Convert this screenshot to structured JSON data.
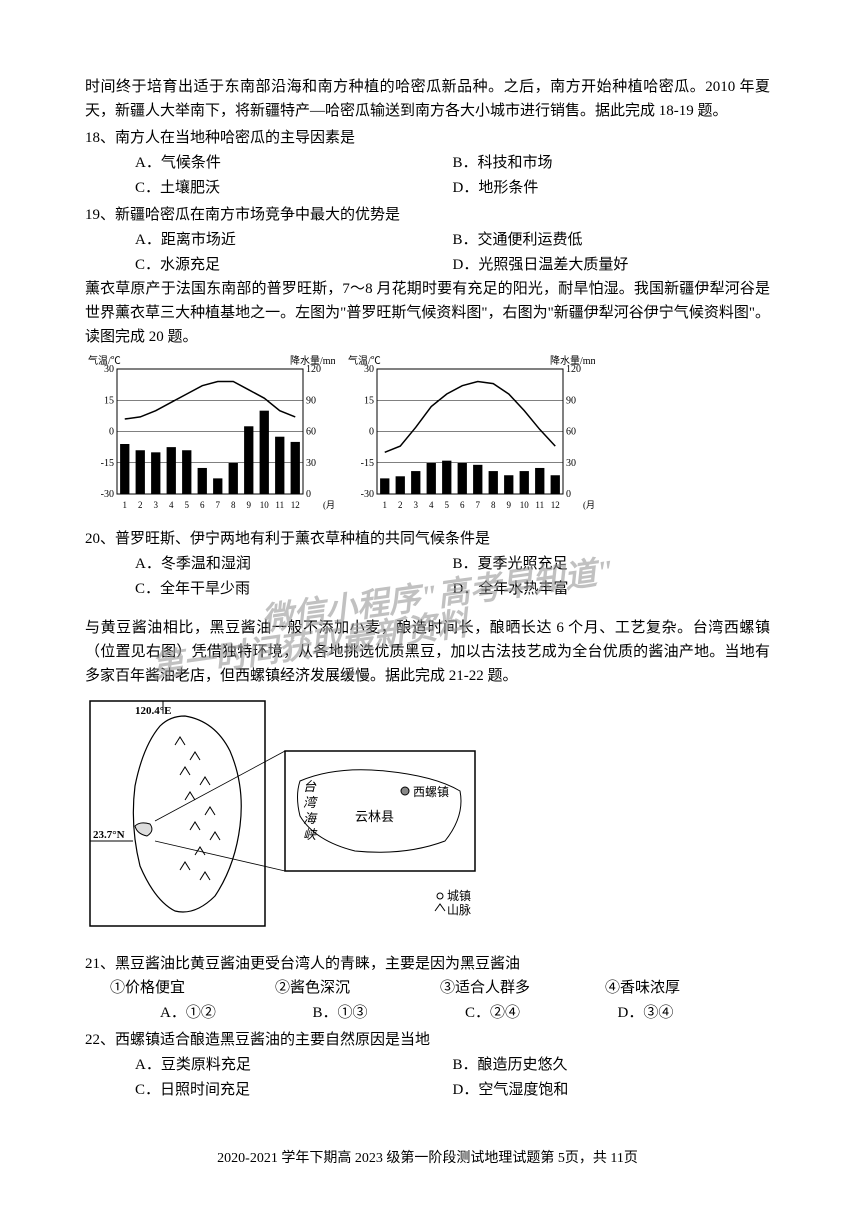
{
  "intro1": "时间终于培育出适于东南部沿海和南方种植的哈密瓜新品种。之后，南方开始种植哈密瓜。2010 年夏天，新疆人大举南下，将新疆特产—哈密瓜输送到南方各大小城市进行销售。据此完成 18-19 题。",
  "q18": {
    "text": "18、南方人在当地种哈密瓜的主导因素是",
    "a": "A．气候条件",
    "b": "B．科技和市场",
    "c": "C．土壤肥沃",
    "d": "D．地形条件"
  },
  "q19": {
    "text": "19、新疆哈密瓜在南方市场竞争中最大的优势是",
    "a": "A．距离市场近",
    "b": "B．交通便利运费低",
    "c": "C．水源充足",
    "d": "D．光照强日温差大质量好"
  },
  "intro2": "薰衣草原产于法国东南部的普罗旺斯，7～8 月花期时要有充足的阳光，耐旱怕湿。我国新疆伊犁河谷是世界薰衣草三大种植基地之一。左图为\"普罗旺斯气候资料图\"，右图为\"新疆伊犁河谷伊宁气候资料图\"。读图完成 20 题。",
  "chart1": {
    "type": "combo",
    "yleft_label": "气温/℃",
    "yright_label": "降水量/mm",
    "temp_yticks": [
      -30,
      -15,
      0,
      15,
      30
    ],
    "precip_yticks": [
      0,
      30,
      60,
      90,
      120
    ],
    "months": [
      1,
      2,
      3,
      4,
      5,
      6,
      7,
      8,
      9,
      10,
      11,
      12
    ],
    "x_label": "(月)",
    "temp_line": [
      6,
      7,
      10,
      14,
      18,
      22,
      24,
      24,
      20,
      16,
      10,
      7
    ],
    "precip_bars": [
      48,
      42,
      40,
      45,
      42,
      25,
      15,
      30,
      65,
      80,
      55,
      50
    ],
    "bar_color": "#000000",
    "line_color": "#000000",
    "bg_color": "#ffffff",
    "axis_fontsize": 10
  },
  "chart2": {
    "type": "combo",
    "yleft_label": "气温/℃",
    "yright_label": "降水量/mm",
    "temp_yticks": [
      -30,
      -15,
      0,
      15,
      30
    ],
    "precip_yticks": [
      0,
      30,
      60,
      90,
      120
    ],
    "months": [
      1,
      2,
      3,
      4,
      5,
      6,
      7,
      8,
      9,
      10,
      11,
      12
    ],
    "x_label": "(月)",
    "temp_line": [
      -10,
      -7,
      2,
      12,
      18,
      22,
      24,
      23,
      18,
      10,
      1,
      -7
    ],
    "precip_bars": [
      15,
      17,
      22,
      30,
      32,
      30,
      28,
      22,
      18,
      22,
      25,
      18
    ],
    "bar_color": "#000000",
    "line_color": "#000000",
    "bg_color": "#ffffff",
    "axis_fontsize": 10
  },
  "q20": {
    "text": "20、普罗旺斯、伊宁两地有利于薰衣草种植的共同气候条件是",
    "a": "A．冬季温和湿润",
    "b": "B．夏季光照充足",
    "c": "C．全年干旱少雨",
    "d": "D．全年水热丰富"
  },
  "watermark1": "微信小程序\"高考早知道\"",
  "watermark2": "第一时间获取最新资料",
  "intro3": "与黄豆酱油相比，黑豆酱油一般不添加小麦，酿造时间长，酿晒长达 6 个月、工艺复杂。台湾西螺镇（位置见右图）凭借独特环境，从各地挑选优质黑豆，加以古法技艺成为全台优质的酱油产地。当地有多家百年酱油老店，但西螺镇经济发展缓慢。据此完成 21-22 题。",
  "map": {
    "longitude_label": "120.4°E",
    "latitude_label": "23.7°N",
    "sea_label": "台湾海峡",
    "county_label": "云林县",
    "town_label": "西螺镇",
    "legend_town": "城镇",
    "legend_mountain": "山脉"
  },
  "q21": {
    "text": "21、黑豆酱油比黄豆酱油更受台湾人的青睐，主要是因为黑豆酱油",
    "c1": "①价格便宜",
    "c2": "②酱色深沉",
    "c3": "③适合人群多",
    "c4": "④香味浓厚",
    "a": "A．①②",
    "b": "B．①③",
    "c": "C．②④",
    "d": "D．③④"
  },
  "q22": {
    "text": "22、西螺镇适合酿造黑豆酱油的主要自然原因是当地",
    "a": "A．豆类原料充足",
    "b": "B．酿造历史悠久",
    "c": "C．日照时间充足",
    "d": "D．空气湿度饱和"
  },
  "footer": "2020-2021 学年下期高 2023 级第一阶段测试地理试题第 5页，共 11页"
}
